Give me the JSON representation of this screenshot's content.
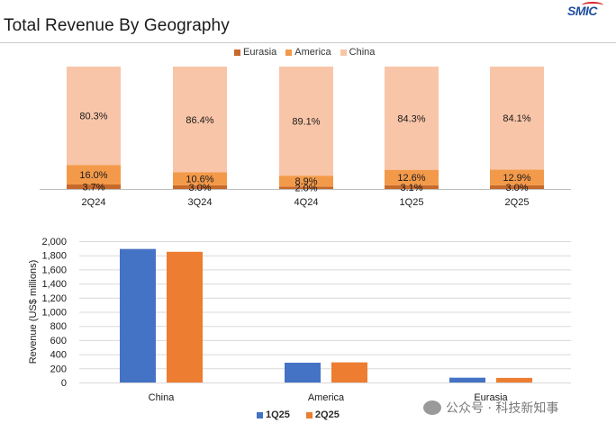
{
  "header": {
    "title": "Total Revenue By Geography",
    "logo_text": "SMIC"
  },
  "watermark": {
    "text": "公众号 · 科技新知事"
  },
  "colors": {
    "eurasia": "#c7692b",
    "america": "#f39a4a",
    "china": "#f9c5a8",
    "q1": "#4472c4",
    "q2": "#ed7d31",
    "grid": "#d9d9d9"
  },
  "chart_data": [
    {
      "type": "bar",
      "stacked": true,
      "percent": true,
      "categories": [
        "2Q24",
        "3Q24",
        "4Q24",
        "1Q25",
        "2Q25"
      ],
      "series": [
        {
          "name": "Eurasia",
          "values": [
            3.7,
            3.0,
            2.0,
            3.1,
            3.0
          ]
        },
        {
          "name": "America",
          "values": [
            16.0,
            10.6,
            8.9,
            12.6,
            12.9
          ]
        },
        {
          "name": "China",
          "values": [
            80.3,
            86.4,
            89.1,
            84.3,
            84.1
          ]
        }
      ],
      "legend_position": "top",
      "grid": false
    },
    {
      "type": "bar",
      "categories": [
        "China",
        "America",
        "Eurasia"
      ],
      "series": [
        {
          "name": "1Q25",
          "values": [
            1890,
            280,
            68
          ]
        },
        {
          "name": "2Q25",
          "values": [
            1850,
            285,
            65
          ]
        }
      ],
      "ylabel": "Revenue (US$ millions)",
      "ylim": [
        0,
        2000
      ],
      "yticks": [
        "0",
        "200",
        "400",
        "600",
        "800",
        "1,000",
        "1,200",
        "1,400",
        "1,600",
        "1,800",
        "2,000"
      ],
      "grid": true,
      "legend_position": "bottom"
    }
  ]
}
